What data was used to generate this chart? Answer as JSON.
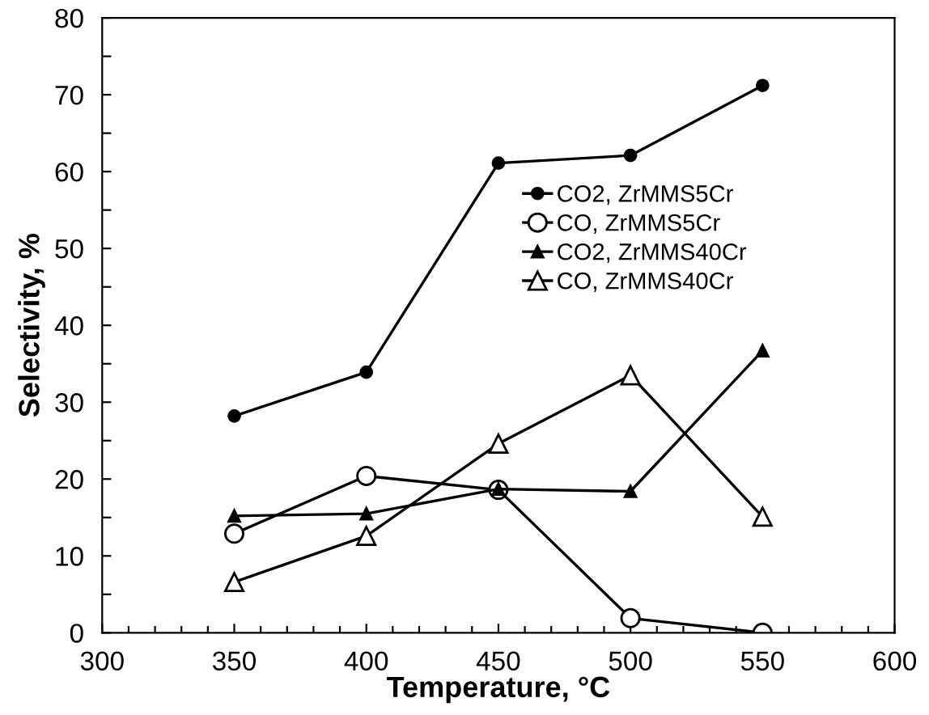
{
  "chart_data": {
    "type": "line",
    "xlabel": "Temperature, °C",
    "ylabel": "Selectivity, %",
    "x": [
      350,
      400,
      450,
      500,
      550
    ],
    "series": [
      {
        "name": "CO2, ZrMMS5Cr",
        "color": "#000000",
        "marker": "circle",
        "values": [
          28.2,
          33.9,
          61.1,
          62.1,
          71.2
        ]
      },
      {
        "name": "CO, ZrMMS5Cr",
        "color": "#000000",
        "marker": "circle",
        "values": [
          12.9,
          20.4,
          18.6,
          1.9,
          0
        ]
      },
      {
        "name": "CO2, ZrMMS40Cr",
        "color": "#000000",
        "marker": "triangle",
        "values": [
          15.2,
          15.5,
          18.7,
          18.4,
          36.7
        ]
      },
      {
        "name": "CO, ZrMMS40Cr",
        "color": "#000000",
        "marker": "triangle",
        "values": [
          6.6,
          12.6,
          24.6,
          33.5,
          15.1
        ]
      }
    ],
    "xlim": [
      300,
      600
    ],
    "xticks": [
      300,
      {
        "value": 310,
        "label": null
      },
      {
        "value": 320,
        "label": null
      },
      {
        "value": 330,
        "label": null
      },
      {
        "value": 340,
        "label": null
      },
      350,
      {
        "value": 360,
        "label": null
      },
      {
        "value": 370,
        "label": null
      },
      {
        "value": 380,
        "label": null
      },
      {
        "value": 390,
        "label": null
      },
      400,
      {
        "value": 410,
        "label": null
      },
      {
        "value": 420,
        "label": null
      },
      {
        "value": 430,
        "label": null
      },
      {
        "value": 440,
        "label": null
      },
      450,
      {
        "value": 460,
        "label": null
      },
      {
        "value": 470,
        "label": null
      },
      {
        "value": 480,
        "label": null
      },
      {
        "value": 490,
        "label": null
      },
      500,
      {
        "value": 510,
        "label": null
      },
      {
        "value": 520,
        "label": null
      },
      {
        "value": 530,
        "label": null
      },
      {
        "value": 540,
        "label": null
      },
      550,
      {
        "value": 560,
        "label": null
      },
      {
        "value": 570,
        "label": null
      },
      {
        "value": 580,
        "label": null
      },
      {
        "value": 590,
        "label": null
      },
      600
    ],
    "ylim": [
      0,
      80
    ],
    "yticks": [
      0,
      {
        "value": 5,
        "label": null
      },
      10,
      {
        "value": 15,
        "label": null
      },
      20,
      {
        "value": 25,
        "label": null
      },
      30,
      {
        "value": 35,
        "label": null
      },
      40,
      {
        "value": 45,
        "label": null
      },
      50,
      {
        "value": 55,
        "label": null
      },
      60,
      {
        "value": 65,
        "label": null
      },
      70,
      {
        "value": 75,
        "label": null
      },
      80
    ],
    "grid": false,
    "legend": "right",
    "line_style": "solid"
  }
}
